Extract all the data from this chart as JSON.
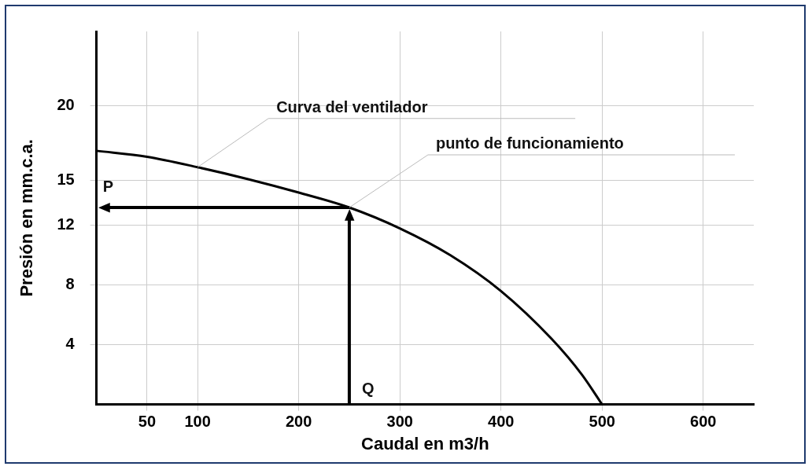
{
  "chart_data": {
    "type": "line",
    "xlabel": "Caudal en m3/h",
    "ylabel": "Presión en mm.c.a.",
    "xlim": [
      0,
      650
    ],
    "xticks": [
      50,
      100,
      200,
      300,
      400,
      500,
      600
    ],
    "ylim": [
      0,
      25
    ],
    "yticks": [
      4,
      8,
      12,
      15,
      20
    ],
    "grid": true,
    "marker": "none",
    "line_style": "solid",
    "series": [
      {
        "color": "#000000",
        "x": [
          0,
          50,
          100,
          150,
          200,
          250,
          300,
          350,
          400,
          450,
          480,
          500
        ],
        "values": [
          17,
          16.6,
          15.9,
          15.1,
          14.2,
          13.2,
          11.8,
          10,
          7.6,
          4.4,
          2,
          0
        ]
      }
    ],
    "annotations": [
      {
        "text": "Curva del ventilador",
        "x": 100,
        "y": 15.9
      },
      {
        "text": "punto de funcionamiento",
        "x": 250,
        "y": 13.2
      }
    ],
    "ref_lines": [
      {
        "axis": "y",
        "value": 13.2,
        "label": "P",
        "color": "#000000"
      },
      {
        "axis": "x",
        "value": 250,
        "label": "Q",
        "color": "#000000"
      }
    ]
  }
}
